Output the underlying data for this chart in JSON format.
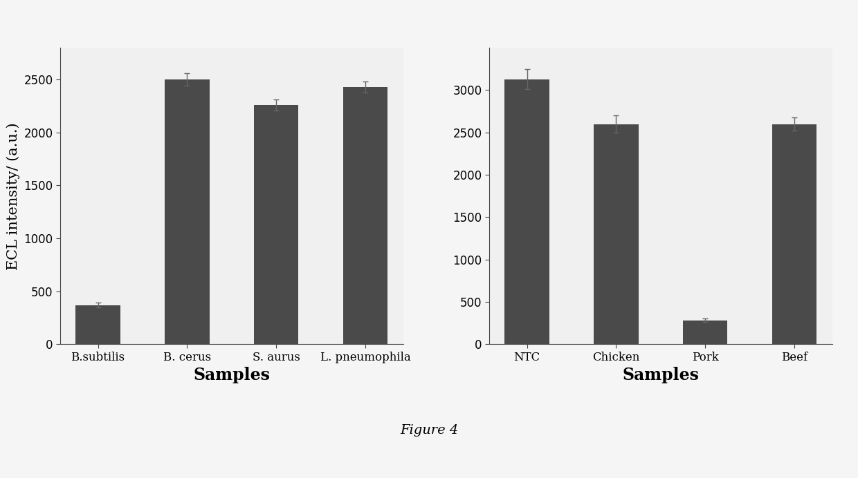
{
  "left_chart": {
    "categories": [
      "B.subtilis",
      "B. cerus",
      "S. aurus",
      "L. pneumophila"
    ],
    "values": [
      370,
      2500,
      2260,
      2430
    ],
    "errors": [
      20,
      60,
      50,
      50
    ],
    "ylabel": "ECL intensity/ (a.u.)",
    "xlabel": "Samples",
    "ylim": [
      0,
      2800
    ],
    "yticks": [
      0,
      500,
      1000,
      1500,
      2000,
      2500
    ]
  },
  "right_chart": {
    "categories": [
      "NTC",
      "Chicken",
      "Pork",
      "Beef"
    ],
    "values": [
      3130,
      2600,
      280,
      2600
    ],
    "errors": [
      120,
      100,
      20,
      80
    ],
    "ylabel": "",
    "xlabel": "Samples",
    "ylim": [
      0,
      3500
    ],
    "yticks": [
      0,
      500,
      1000,
      1500,
      2000,
      2500,
      3000
    ]
  },
  "figure_label": "Figure 4",
  "bar_color": "#4a4a4a",
  "bar_width": 0.5,
  "background_color": "#f5f5f5",
  "axis_bg_color": "#f0f0f0",
  "axis_label_fontsize": 15,
  "tick_fontsize": 12,
  "figure_label_fontsize": 14,
  "capsize": 3,
  "ecolor": "#666666",
  "elinewidth": 1.0
}
